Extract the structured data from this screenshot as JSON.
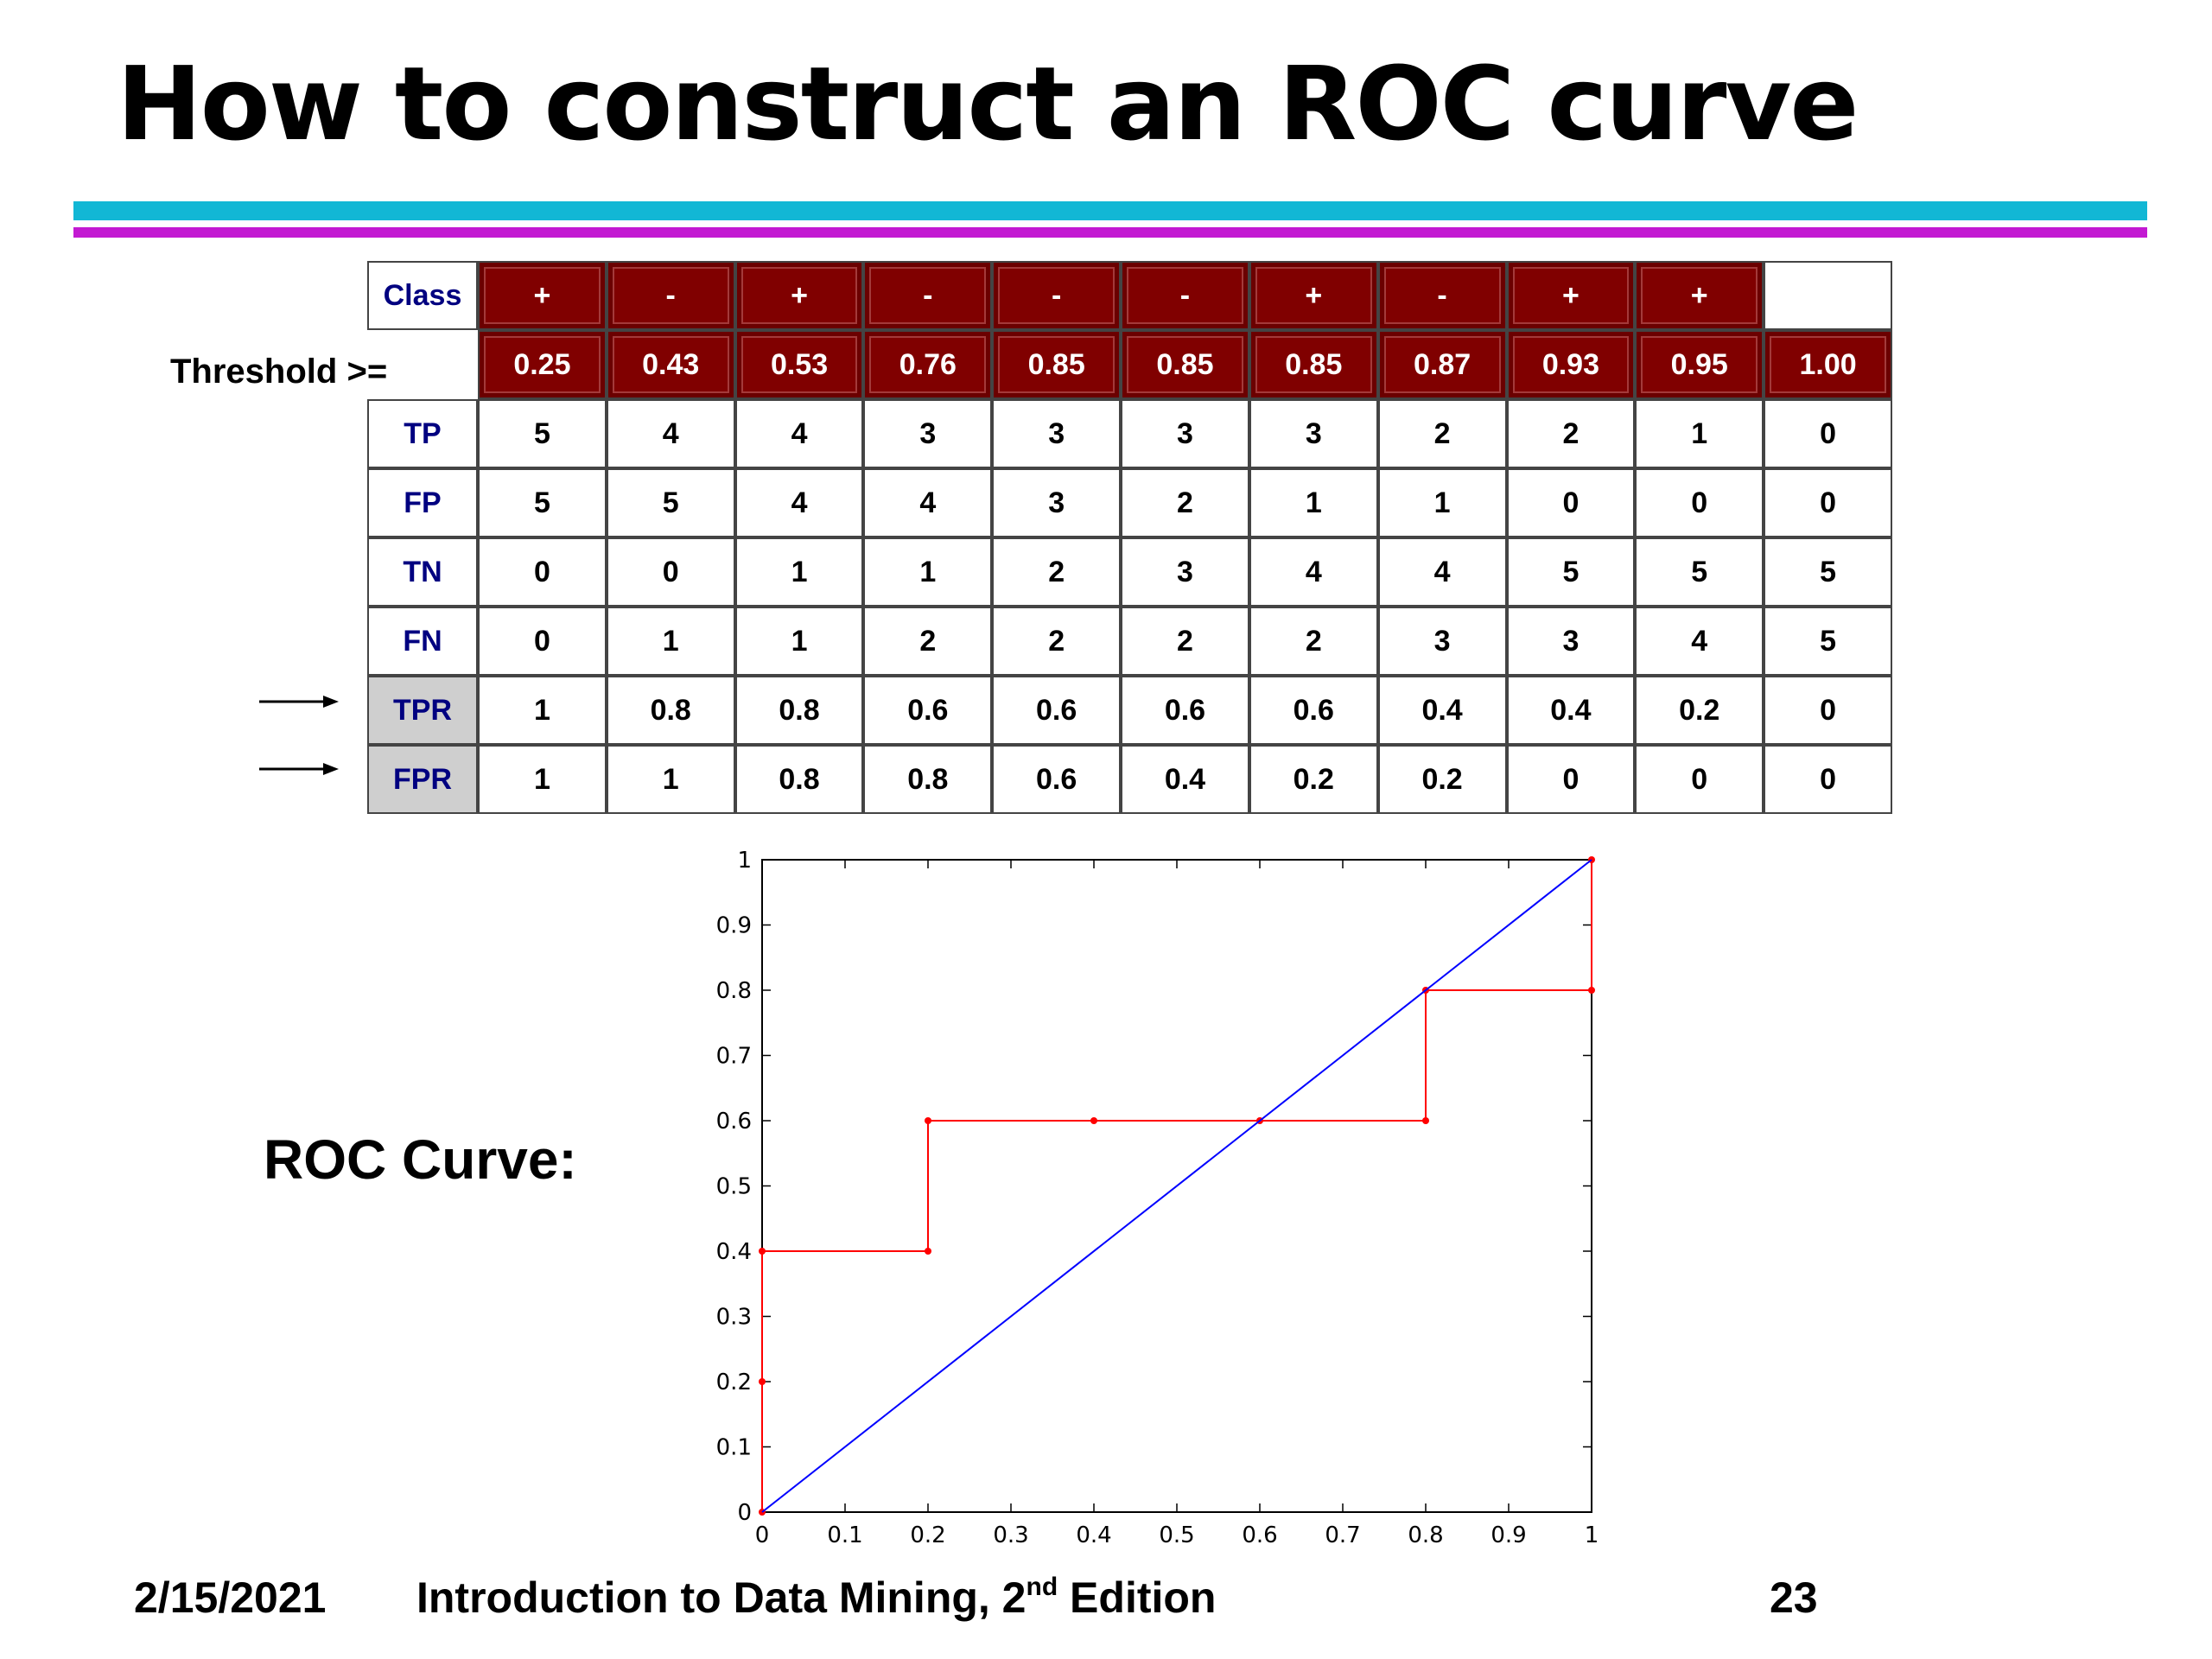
{
  "slide": {
    "title": "How to construct an ROC curve",
    "threshold_label": "Threshold >=",
    "roc_label": "ROC Curve:",
    "footer": {
      "date": "2/15/2021",
      "course_text": "Introduction to Data Mining, 2",
      "course_sup": "nd",
      "course_suffix": " Edition",
      "page": "23"
    }
  },
  "colors": {
    "accent_cyan": "#12b7d5",
    "accent_magenta": "#c31ad2",
    "header_dark_red": "#800000",
    "label_navy": "#000080",
    "roc_red": "#ff0000",
    "diagonal_blue": "#0000ff"
  },
  "table": {
    "class_label": "Class",
    "classes": [
      "+",
      "-",
      "+",
      "-",
      "-",
      "-",
      "+",
      "-",
      "+",
      "+",
      ""
    ],
    "thresholds": [
      "0.25",
      "0.43",
      "0.53",
      "0.76",
      "0.85",
      "0.85",
      "0.85",
      "0.87",
      "0.93",
      "0.95",
      "1.00"
    ],
    "rows": [
      {
        "label": "TP",
        "values": [
          "5",
          "4",
          "4",
          "3",
          "3",
          "3",
          "3",
          "2",
          "2",
          "1",
          "0"
        ]
      },
      {
        "label": "FP",
        "values": [
          "5",
          "5",
          "4",
          "4",
          "3",
          "2",
          "1",
          "1",
          "0",
          "0",
          "0"
        ]
      },
      {
        "label": "TN",
        "values": [
          "0",
          "0",
          "1",
          "1",
          "2",
          "3",
          "4",
          "4",
          "5",
          "5",
          "5"
        ]
      },
      {
        "label": "FN",
        "values": [
          "0",
          "1",
          "1",
          "2",
          "2",
          "2",
          "2",
          "3",
          "3",
          "4",
          "5"
        ]
      },
      {
        "label": "TPR",
        "values": [
          "1",
          "0.8",
          "0.8",
          "0.6",
          "0.6",
          "0.6",
          "0.6",
          "0.4",
          "0.4",
          "0.2",
          "0"
        ],
        "highlight": true
      },
      {
        "label": "FPR",
        "values": [
          "1",
          "1",
          "0.8",
          "0.8",
          "0.6",
          "0.4",
          "0.2",
          "0.2",
          "0",
          "0",
          "0"
        ],
        "highlight": true
      }
    ]
  },
  "chart_data": {
    "type": "line",
    "title": "",
    "xlabel": "",
    "ylabel": "",
    "xlim": [
      0,
      1
    ],
    "ylim": [
      0,
      1
    ],
    "x_ticks": [
      "0",
      "0.1",
      "0.2",
      "0.3",
      "0.4",
      "0.5",
      "0.6",
      "0.7",
      "0.8",
      "0.9",
      "1"
    ],
    "y_ticks": [
      "0",
      "0.1",
      "0.2",
      "0.3",
      "0.4",
      "0.5",
      "0.6",
      "0.7",
      "0.8",
      "0.9",
      "1"
    ],
    "series": [
      {
        "color": "#ff0000",
        "markers": true,
        "points": [
          [
            1,
            1
          ],
          [
            1,
            0.8
          ],
          [
            0.8,
            0.8
          ],
          [
            0.8,
            0.6
          ],
          [
            0.6,
            0.6
          ],
          [
            0.4,
            0.6
          ],
          [
            0.2,
            0.6
          ],
          [
            0.2,
            0.4
          ],
          [
            0,
            0.4
          ],
          [
            0,
            0.2
          ],
          [
            0,
            0
          ]
        ]
      },
      {
        "color": "#0000ff",
        "markers": false,
        "points": [
          [
            0,
            0
          ],
          [
            1,
            1
          ]
        ]
      }
    ],
    "grid": false
  }
}
